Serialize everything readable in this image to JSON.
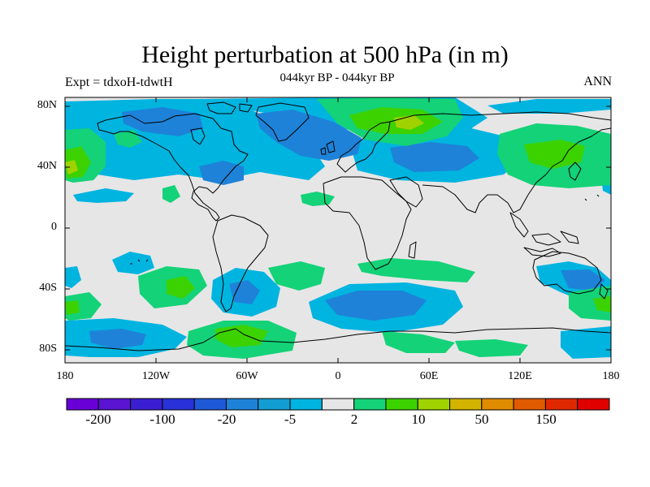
{
  "title": "Height perturbation at 500 hPa (in m)",
  "subtitle": "044kyr BP - 044kyr BP",
  "experiment_label": "Expt = tdxoH-tdwtH",
  "season_label": "ANN",
  "map": {
    "projection": "cylindrical equidistant",
    "lon_range": [
      -180,
      180
    ],
    "lat_range": [
      -90,
      90
    ],
    "x_ticks": [
      "180",
      "120W",
      "60W",
      "0",
      "60E",
      "120E",
      "180"
    ],
    "y_ticks": [
      "80N",
      "40N",
      "0",
      "40S",
      "80S"
    ]
  },
  "colorbar": {
    "colors": [
      "#6a00d8",
      "#5a14d2",
      "#3c1ed2",
      "#2832d8",
      "#1e5ad8",
      "#1e82d8",
      "#129ed2",
      "#00b4e0",
      "#e6e6e6",
      "#14d278",
      "#3cd200",
      "#a0d200",
      "#d2b400",
      "#e08c00",
      "#e05a00",
      "#e02800",
      "#e00000"
    ],
    "labels": [
      "-200",
      "-100",
      "-20",
      "-5",
      "2",
      "10",
      "50",
      "150"
    ]
  },
  "contour_levels": {
    "neutral": "#e6e6e6",
    "cyan": "#00b4e0",
    "lightblue": "#129ed2",
    "blue": "#1e82d8",
    "green": "#14d278",
    "lime": "#3cd200",
    "yellowgreen": "#a0d200"
  }
}
